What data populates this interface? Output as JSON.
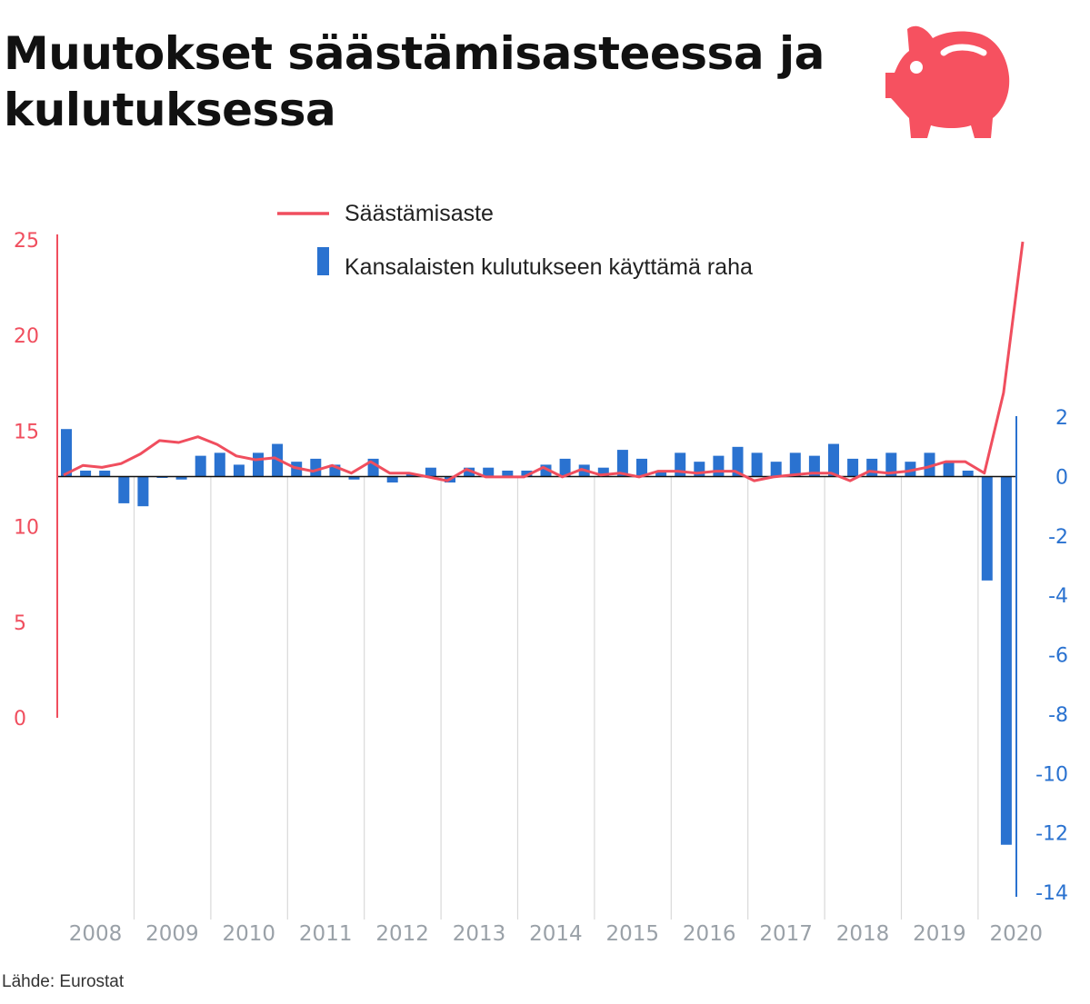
{
  "title": "Muutokset säästämisasteessa ja kulutuksessa",
  "source": "Lähde: Eurostat",
  "icon": "piggy-bank-icon",
  "colors": {
    "line": "#f04e5e",
    "bar": "#2a72d0",
    "axis_x_text": "#9aa1a8",
    "grid": "#d9d9d9",
    "icon": "#f65160"
  },
  "chart_data": {
    "type": "bar",
    "legend": [
      "Säästämisaste",
      "Kansalaisten kulutukseen käyttämä raha"
    ],
    "legend_position": "top-center",
    "x_tick_labels": [
      "2008",
      "2009",
      "2010",
      "2011",
      "2012",
      "2013",
      "2014",
      "2015",
      "2016",
      "2017",
      "2018",
      "2019",
      "2020"
    ],
    "left_axis": {
      "ticks": [
        "0",
        "5",
        "10",
        "15",
        "20",
        "25"
      ],
      "ylim": [
        0,
        25
      ]
    },
    "right_axis": {
      "ticks": [
        "-14",
        "-12",
        "-10",
        "-8",
        "-6",
        "-4",
        "-2",
        "0",
        "2"
      ],
      "ylim": [
        -14,
        2
      ]
    },
    "grid": "vertical year separators",
    "series": [
      {
        "name": "Säästämisaste",
        "type": "line",
        "axis": "left",
        "values": [
          12.7,
          13.2,
          13.1,
          13.3,
          13.8,
          14.5,
          14.4,
          14.7,
          14.3,
          13.7,
          13.5,
          13.6,
          13.1,
          12.9,
          13.2,
          12.8,
          13.4,
          12.8,
          12.8,
          12.6,
          12.4,
          13.0,
          12.6,
          12.6,
          12.6,
          13.1,
          12.6,
          13.0,
          12.7,
          12.8,
          12.6,
          12.9,
          12.9,
          12.8,
          12.9,
          12.9,
          12.4,
          12.6,
          12.7,
          12.8,
          12.8,
          12.4,
          12.9,
          12.8,
          12.9,
          13.1,
          13.4,
          13.4,
          12.8,
          17.0,
          24.9
        ]
      },
      {
        "name": "Kansalaisten kulutukseen käyttämä raha",
        "type": "bar",
        "axis": "right",
        "values": [
          1.6,
          0.2,
          0.2,
          -0.9,
          -1.0,
          0.0,
          -0.1,
          0.7,
          0.8,
          0.4,
          0.8,
          1.1,
          0.5,
          0.6,
          0.4,
          -0.1,
          0.6,
          -0.2,
          0.1,
          0.3,
          -0.2,
          0.3,
          0.3,
          0.2,
          0.2,
          0.4,
          0.6,
          0.4,
          0.3,
          0.9,
          0.6,
          0.2,
          0.8,
          0.5,
          0.7,
          1.0,
          0.8,
          0.5,
          0.8,
          0.7,
          1.1,
          0.6,
          0.6,
          0.8,
          0.5,
          0.8,
          0.5,
          0.2,
          -3.5,
          -12.4
        ]
      }
    ]
  }
}
